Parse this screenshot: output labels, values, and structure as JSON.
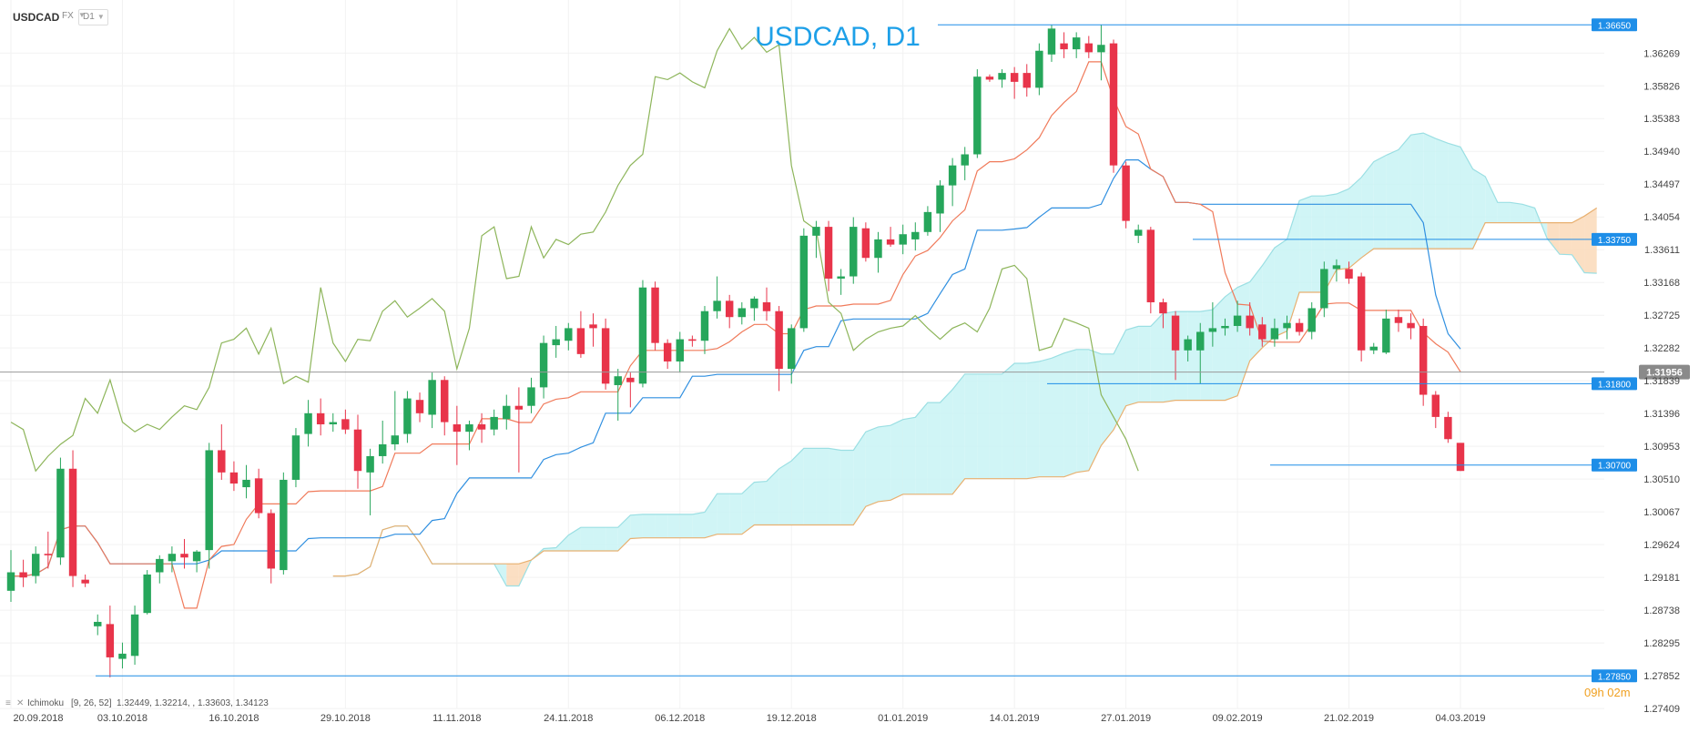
{
  "toolbar": {
    "symbol": "USDCAD",
    "market": "FX",
    "timeframe": "D1"
  },
  "chart_data": {
    "type": "candlestick",
    "title": "USDCAD, D1",
    "ylim": [
      1.2741,
      1.3674
    ],
    "y_ticks": [
      "1.36269",
      "1.35826",
      "1.35383",
      "1.34940",
      "1.34497",
      "1.34054",
      "1.33611",
      "1.33168",
      "1.32725",
      "1.32282",
      "1.31839",
      "1.31396",
      "1.30953",
      "1.30510",
      "1.30067",
      "1.29624",
      "1.29181",
      "1.28738",
      "1.28295",
      "1.27852",
      "1.27409"
    ],
    "x_ticks": [
      "20.09.2018",
      "03.10.2018",
      "16.10.2018",
      "29.10.2018",
      "11.11.2018",
      "24.11.2018",
      "06.12.2018",
      "19.12.2018",
      "01.01.2019",
      "14.01.2019",
      "27.01.2019",
      "09.02.2019",
      "21.02.2019",
      "04.03.2019"
    ],
    "candles": [
      {
        "date": "2018-09-20",
        "o": 1.29,
        "h": 1.2955,
        "l": 1.2885,
        "c": 1.2925
      },
      {
        "date": "2018-09-21",
        "o": 1.2925,
        "h": 1.2942,
        "l": 1.2905,
        "c": 1.2918
      },
      {
        "date": "2018-09-24",
        "o": 1.292,
        "h": 1.296,
        "l": 1.291,
        "c": 1.295
      },
      {
        "date": "2018-09-25",
        "o": 1.295,
        "h": 1.298,
        "l": 1.293,
        "c": 1.2948
      },
      {
        "date": "2018-09-26",
        "o": 1.2945,
        "h": 1.308,
        "l": 1.2935,
        "c": 1.3065
      },
      {
        "date": "2018-09-27",
        "o": 1.3065,
        "h": 1.309,
        "l": 1.2905,
        "c": 1.292
      },
      {
        "date": "2018-09-28",
        "o": 1.2915,
        "h": 1.2922,
        "l": 1.2905,
        "c": 1.291
      },
      {
        "date": "2018-10-01",
        "o": 1.2852,
        "h": 1.2868,
        "l": 1.284,
        "c": 1.2858
      },
      {
        "date": "2018-10-02",
        "o": 1.2855,
        "h": 1.288,
        "l": 1.2783,
        "c": 1.281
      },
      {
        "date": "2018-10-03",
        "o": 1.2808,
        "h": 1.283,
        "l": 1.2795,
        "c": 1.2815
      },
      {
        "date": "2018-10-04",
        "o": 1.2812,
        "h": 1.288,
        "l": 1.28,
        "c": 1.2868
      },
      {
        "date": "2018-10-05",
        "o": 1.287,
        "h": 1.2928,
        "l": 1.2868,
        "c": 1.2922
      },
      {
        "date": "2018-10-08",
        "o": 1.2925,
        "h": 1.2948,
        "l": 1.291,
        "c": 1.2943
      },
      {
        "date": "2018-10-09",
        "o": 1.294,
        "h": 1.296,
        "l": 1.2925,
        "c": 1.295
      },
      {
        "date": "2018-10-10",
        "o": 1.295,
        "h": 1.297,
        "l": 1.293,
        "c": 1.2945
      },
      {
        "date": "2018-10-11",
        "o": 1.294,
        "h": 1.2955,
        "l": 1.2925,
        "c": 1.2953
      },
      {
        "date": "2018-10-12",
        "o": 1.2955,
        "h": 1.31,
        "l": 1.293,
        "c": 1.309
      },
      {
        "date": "2018-10-15",
        "o": 1.309,
        "h": 1.3125,
        "l": 1.305,
        "c": 1.306
      },
      {
        "date": "2018-10-16",
        "o": 1.306,
        "h": 1.3075,
        "l": 1.3035,
        "c": 1.3045
      },
      {
        "date": "2018-10-17",
        "o": 1.304,
        "h": 1.307,
        "l": 1.3025,
        "c": 1.305
      },
      {
        "date": "2018-10-18",
        "o": 1.3052,
        "h": 1.3065,
        "l": 1.2998,
        "c": 1.3005
      },
      {
        "date": "2018-10-19",
        "o": 1.3005,
        "h": 1.301,
        "l": 1.291,
        "c": 1.293
      },
      {
        "date": "2018-10-22",
        "o": 1.2928,
        "h": 1.306,
        "l": 1.2922,
        "c": 1.305
      },
      {
        "date": "2018-10-23",
        "o": 1.305,
        "h": 1.312,
        "l": 1.304,
        "c": 1.311
      },
      {
        "date": "2018-10-24",
        "o": 1.3112,
        "h": 1.3158,
        "l": 1.3095,
        "c": 1.314
      },
      {
        "date": "2018-10-25",
        "o": 1.314,
        "h": 1.316,
        "l": 1.311,
        "c": 1.3125
      },
      {
        "date": "2018-10-26",
        "o": 1.3125,
        "h": 1.314,
        "l": 1.3115,
        "c": 1.3128
      },
      {
        "date": "2018-10-29",
        "o": 1.3132,
        "h": 1.3145,
        "l": 1.3112,
        "c": 1.3118
      },
      {
        "date": "2018-10-30",
        "o": 1.3118,
        "h": 1.3138,
        "l": 1.3038,
        "c": 1.3062
      },
      {
        "date": "2018-10-31",
        "o": 1.306,
        "h": 1.3092,
        "l": 1.3002,
        "c": 1.3082
      },
      {
        "date": "2018-11-01",
        "o": 1.3082,
        "h": 1.313,
        "l": 1.3072,
        "c": 1.3098
      },
      {
        "date": "2018-11-02",
        "o": 1.3098,
        "h": 1.317,
        "l": 1.309,
        "c": 1.311
      },
      {
        "date": "2018-11-05",
        "o": 1.3112,
        "h": 1.317,
        "l": 1.31,
        "c": 1.316
      },
      {
        "date": "2018-11-06",
        "o": 1.3158,
        "h": 1.3168,
        "l": 1.3128,
        "c": 1.314
      },
      {
        "date": "2018-11-07",
        "o": 1.3138,
        "h": 1.3195,
        "l": 1.312,
        "c": 1.3185
      },
      {
        "date": "2018-11-08",
        "o": 1.3185,
        "h": 1.319,
        "l": 1.311,
        "c": 1.3128
      },
      {
        "date": "2018-11-09",
        "o": 1.3125,
        "h": 1.315,
        "l": 1.307,
        "c": 1.3115
      },
      {
        "date": "2018-11-12",
        "o": 1.3115,
        "h": 1.313,
        "l": 1.309,
        "c": 1.3125
      },
      {
        "date": "2018-11-13",
        "o": 1.3125,
        "h": 1.314,
        "l": 1.31,
        "c": 1.3118
      },
      {
        "date": "2018-11-14",
        "o": 1.3118,
        "h": 1.3145,
        "l": 1.311,
        "c": 1.3135
      },
      {
        "date": "2018-11-15",
        "o": 1.3132,
        "h": 1.3165,
        "l": 1.3118,
        "c": 1.315
      },
      {
        "date": "2018-11-16",
        "o": 1.315,
        "h": 1.3175,
        "l": 1.306,
        "c": 1.3145
      },
      {
        "date": "2018-11-19",
        "o": 1.315,
        "h": 1.3188,
        "l": 1.314,
        "c": 1.3175
      },
      {
        "date": "2018-11-20",
        "o": 1.3175,
        "h": 1.3245,
        "l": 1.316,
        "c": 1.3235
      },
      {
        "date": "2018-11-21",
        "o": 1.3232,
        "h": 1.3258,
        "l": 1.3215,
        "c": 1.324
      },
      {
        "date": "2018-11-22",
        "o": 1.3238,
        "h": 1.3262,
        "l": 1.3225,
        "c": 1.3255
      },
      {
        "date": "2018-11-23",
        "o": 1.3255,
        "h": 1.3278,
        "l": 1.3215,
        "c": 1.322
      },
      {
        "date": "2018-11-26",
        "o": 1.326,
        "h": 1.3275,
        "l": 1.323,
        "c": 1.3255
      },
      {
        "date": "2018-11-27",
        "o": 1.3255,
        "h": 1.3268,
        "l": 1.3172,
        "c": 1.318
      },
      {
        "date": "2018-11-28",
        "o": 1.3178,
        "h": 1.32,
        "l": 1.313,
        "c": 1.319
      },
      {
        "date": "2018-11-29",
        "o": 1.3188,
        "h": 1.3195,
        "l": 1.3148,
        "c": 1.3182
      },
      {
        "date": "2018-11-30",
        "o": 1.318,
        "h": 1.332,
        "l": 1.3175,
        "c": 1.331
      },
      {
        "date": "2018-12-03",
        "o": 1.331,
        "h": 1.3318,
        "l": 1.3225,
        "c": 1.3235
      },
      {
        "date": "2018-12-04",
        "o": 1.3235,
        "h": 1.324,
        "l": 1.32,
        "c": 1.321
      },
      {
        "date": "2018-12-05",
        "o": 1.321,
        "h": 1.325,
        "l": 1.3195,
        "c": 1.324
      },
      {
        "date": "2018-12-06",
        "o": 1.324,
        "h": 1.3245,
        "l": 1.323,
        "c": 1.3238
      },
      {
        "date": "2018-12-07",
        "o": 1.3238,
        "h": 1.3285,
        "l": 1.322,
        "c": 1.3278
      },
      {
        "date": "2018-12-10",
        "o": 1.3278,
        "h": 1.3325,
        "l": 1.3268,
        "c": 1.3292
      },
      {
        "date": "2018-12-11",
        "o": 1.3292,
        "h": 1.33,
        "l": 1.3255,
        "c": 1.327
      },
      {
        "date": "2018-12-12",
        "o": 1.327,
        "h": 1.329,
        "l": 1.326,
        "c": 1.3282
      },
      {
        "date": "2018-12-13",
        "o": 1.3282,
        "h": 1.3298,
        "l": 1.3265,
        "c": 1.3295
      },
      {
        "date": "2018-12-14",
        "o": 1.329,
        "h": 1.331,
        "l": 1.3265,
        "c": 1.3278
      },
      {
        "date": "2018-12-17",
        "o": 1.3278,
        "h": 1.3285,
        "l": 1.317,
        "c": 1.32
      },
      {
        "date": "2018-12-18",
        "o": 1.32,
        "h": 1.326,
        "l": 1.318,
        "c": 1.3255
      },
      {
        "date": "2018-12-19",
        "o": 1.3255,
        "h": 1.339,
        "l": 1.325,
        "c": 1.338
      },
      {
        "date": "2018-12-20",
        "o": 1.338,
        "h": 1.34,
        "l": 1.335,
        "c": 1.3392
      },
      {
        "date": "2018-12-21",
        "o": 1.3392,
        "h": 1.34,
        "l": 1.3305,
        "c": 1.3322
      },
      {
        "date": "2018-12-24",
        "o": 1.3322,
        "h": 1.3335,
        "l": 1.33,
        "c": 1.3325
      },
      {
        "date": "2018-12-25",
        "o": 1.3325,
        "h": 1.3405,
        "l": 1.3315,
        "c": 1.3392
      },
      {
        "date": "2018-12-26",
        "o": 1.339,
        "h": 1.3398,
        "l": 1.3345,
        "c": 1.335
      },
      {
        "date": "2018-12-27",
        "o": 1.335,
        "h": 1.3385,
        "l": 1.333,
        "c": 1.3375
      },
      {
        "date": "2018-12-28",
        "o": 1.3375,
        "h": 1.3392,
        "l": 1.3365,
        "c": 1.3368
      },
      {
        "date": "2018-12-31",
        "o": 1.3368,
        "h": 1.3395,
        "l": 1.3355,
        "c": 1.3382
      },
      {
        "date": "2019-01-01",
        "o": 1.3375,
        "h": 1.3398,
        "l": 1.336,
        "c": 1.3385
      },
      {
        "date": "2019-01-02",
        "o": 1.3385,
        "h": 1.342,
        "l": 1.338,
        "c": 1.3412
      },
      {
        "date": "2019-01-03",
        "o": 1.341,
        "h": 1.3455,
        "l": 1.3385,
        "c": 1.3448
      },
      {
        "date": "2019-01-04",
        "o": 1.3448,
        "h": 1.3485,
        "l": 1.342,
        "c": 1.3475
      },
      {
        "date": "2019-01-07",
        "o": 1.3475,
        "h": 1.35,
        "l": 1.3455,
        "c": 1.349
      },
      {
        "date": "2019-01-08",
        "o": 1.349,
        "h": 1.3605,
        "l": 1.3485,
        "c": 1.3595
      },
      {
        "date": "2019-01-09",
        "o": 1.3595,
        "h": 1.3598,
        "l": 1.3588,
        "c": 1.3591
      },
      {
        "date": "2019-01-10",
        "o": 1.3591,
        "h": 1.3605,
        "l": 1.358,
        "c": 1.36
      },
      {
        "date": "2019-01-11",
        "o": 1.36,
        "h": 1.3608,
        "l": 1.3565,
        "c": 1.3588
      },
      {
        "date": "2019-01-14",
        "o": 1.36,
        "h": 1.3612,
        "l": 1.3568,
        "c": 1.358
      },
      {
        "date": "2019-01-15",
        "o": 1.358,
        "h": 1.364,
        "l": 1.357,
        "c": 1.363
      },
      {
        "date": "2019-01-16",
        "o": 1.3625,
        "h": 1.3665,
        "l": 1.3615,
        "c": 1.366
      },
      {
        "date": "2019-01-17",
        "o": 1.364,
        "h": 1.3655,
        "l": 1.362,
        "c": 1.3632
      },
      {
        "date": "2019-01-18",
        "o": 1.3632,
        "h": 1.3655,
        "l": 1.362,
        "c": 1.3648
      },
      {
        "date": "2019-01-21",
        "o": 1.364,
        "h": 1.365,
        "l": 1.362,
        "c": 1.3628
      },
      {
        "date": "2019-01-22",
        "o": 1.3628,
        "h": 1.3665,
        "l": 1.359,
        "c": 1.3638
      },
      {
        "date": "2019-01-23",
        "o": 1.364,
        "h": 1.3645,
        "l": 1.3465,
        "c": 1.3475
      },
      {
        "date": "2019-01-24",
        "o": 1.3475,
        "h": 1.348,
        "l": 1.339,
        "c": 1.34
      },
      {
        "date": "2019-01-25",
        "o": 1.338,
        "h": 1.3395,
        "l": 1.337,
        "c": 1.3388
      },
      {
        "date": "2019-01-28",
        "o": 1.3388,
        "h": 1.3392,
        "l": 1.3275,
        "c": 1.329
      },
      {
        "date": "2019-01-29",
        "o": 1.329,
        "h": 1.3295,
        "l": 1.3255,
        "c": 1.3275
      },
      {
        "date": "2019-01-30",
        "o": 1.3272,
        "h": 1.3278,
        "l": 1.3185,
        "c": 1.3225
      },
      {
        "date": "2019-01-31",
        "o": 1.3225,
        "h": 1.3245,
        "l": 1.321,
        "c": 1.324
      },
      {
        "date": "2019-02-01",
        "o": 1.3225,
        "h": 1.3262,
        "l": 1.318,
        "c": 1.325
      },
      {
        "date": "2019-02-04",
        "o": 1.325,
        "h": 1.329,
        "l": 1.323,
        "c": 1.3255
      },
      {
        "date": "2019-02-05",
        "o": 1.3255,
        "h": 1.3268,
        "l": 1.3245,
        "c": 1.3258
      },
      {
        "date": "2019-02-06",
        "o": 1.3258,
        "h": 1.3292,
        "l": 1.325,
        "c": 1.3272
      },
      {
        "date": "2019-02-07",
        "o": 1.3272,
        "h": 1.329,
        "l": 1.3245,
        "c": 1.3255
      },
      {
        "date": "2019-02-08",
        "o": 1.326,
        "h": 1.327,
        "l": 1.323,
        "c": 1.324
      },
      {
        "date": "2019-02-11",
        "o": 1.324,
        "h": 1.3268,
        "l": 1.323,
        "c": 1.3255
      },
      {
        "date": "2019-02-12",
        "o": 1.3255,
        "h": 1.3272,
        "l": 1.324,
        "c": 1.3262
      },
      {
        "date": "2019-02-13",
        "o": 1.3262,
        "h": 1.3268,
        "l": 1.3245,
        "c": 1.325
      },
      {
        "date": "2019-02-14",
        "o": 1.325,
        "h": 1.329,
        "l": 1.324,
        "c": 1.3282
      },
      {
        "date": "2019-02-15",
        "o": 1.3282,
        "h": 1.3345,
        "l": 1.327,
        "c": 1.3335
      },
      {
        "date": "2019-02-18",
        "o": 1.3335,
        "h": 1.3348,
        "l": 1.3318,
        "c": 1.334
      },
      {
        "date": "2019-02-19",
        "o": 1.3335,
        "h": 1.3345,
        "l": 1.3315,
        "c": 1.3322
      },
      {
        "date": "2019-02-20",
        "o": 1.3325,
        "h": 1.333,
        "l": 1.321,
        "c": 1.3225
      },
      {
        "date": "2019-02-21",
        "o": 1.3225,
        "h": 1.3235,
        "l": 1.322,
        "c": 1.323
      },
      {
        "date": "2019-02-22",
        "o": 1.3222,
        "h": 1.328,
        "l": 1.322,
        "c": 1.3268
      },
      {
        "date": "2019-02-25",
        "o": 1.327,
        "h": 1.328,
        "l": 1.325,
        "c": 1.3262
      },
      {
        "date": "2019-02-26",
        "o": 1.3262,
        "h": 1.3275,
        "l": 1.324,
        "c": 1.3255
      },
      {
        "date": "2019-02-27",
        "o": 1.3258,
        "h": 1.3268,
        "l": 1.315,
        "c": 1.3165
      },
      {
        "date": "2019-02-28",
        "o": 1.3165,
        "h": 1.317,
        "l": 1.312,
        "c": 1.3135
      },
      {
        "date": "2019-03-01",
        "o": 1.3135,
        "h": 1.3142,
        "l": 1.31,
        "c": 1.3105
      },
      {
        "date": "2019-03-04",
        "o": 1.31,
        "h": 1.3095,
        "l": 1.3062,
        "c": 1.3062
      }
    ],
    "horizontal_levels": [
      {
        "value": 1.3665,
        "label": "1.36650"
      },
      {
        "value": 1.3375,
        "label": "1.33750"
      },
      {
        "value": 1.318,
        "label": "1.31800"
      },
      {
        "value": 1.307,
        "label": "1.30700"
      },
      {
        "value": 1.2785,
        "label": "1.27850"
      }
    ],
    "current_price": {
      "value": 1.31956,
      "label": "1.31956"
    },
    "countdown": {
      "hours": "09",
      "h_unit": "h",
      "minutes": "02",
      "m_unit": "m"
    },
    "indicator": {
      "name": "Ichimoku",
      "params": "[9, 26, 52]",
      "values": "1.32449,   1.32214,   ,  1.33603,   1.34123"
    },
    "colors": {
      "bull": "#26a65b",
      "bear": "#e8344a",
      "tenkan": "#f07a5a",
      "kijun": "#2f8fe0",
      "chikou": "#8db55a",
      "cloud_bull": "#c8f3f5",
      "cloud_bear": "#fad9b8",
      "level": "#1e8ee8",
      "title": "#1ea0e8"
    }
  }
}
